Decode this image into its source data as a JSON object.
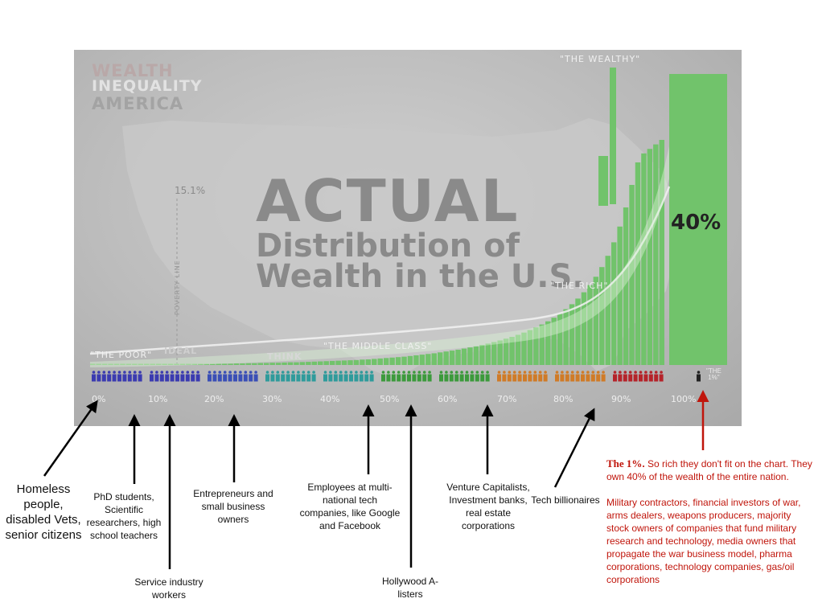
{
  "header": {
    "line1": "WEALTH",
    "line2": "INEQUALITY",
    "line3": "AMERICA"
  },
  "chart": {
    "title_line1": "ACTUAL",
    "title_line2": "Distribution of",
    "title_line3": "Wealth in the U.S.",
    "label_poor": "\"THE POOR\"",
    "label_middle": "\"THE MIDDLE CLASS\"",
    "label_rich": "\"THE RICH\"",
    "label_wealthy": "\"THE WEALTHY\"",
    "label_ideal": "IDEAL",
    "label_think": "THINK",
    "label_poverty_value": "15.1%",
    "label_poverty_line": "POVERTY LINE",
    "big_value": "40%",
    "onepct_label_top": "\"THE",
    "onepct_label_bottom": "1%\""
  },
  "chart_data": {
    "type": "bar",
    "title": "ACTUAL Distribution of Wealth in the U.S.",
    "xlabel": "",
    "ylabel": "",
    "x_ticks": [
      "0%",
      "10%",
      "20%",
      "30%",
      "40%",
      "50%",
      "60%",
      "70%",
      "80%",
      "90%",
      "100%"
    ],
    "top_one_percent_share": "40%",
    "poverty_line": "15.1%",
    "segments": [
      "\"THE POOR\"",
      "\"THE MIDDLE CLASS\"",
      "\"THE RICH\"",
      "\"THE WEALTHY\""
    ],
    "bar_heights_relative": [
      0.002,
      0.002,
      0.002,
      0.002,
      0.002,
      0.002,
      0.002,
      0.002,
      0.002,
      0.002,
      0.003,
      0.003,
      0.003,
      0.003,
      0.003,
      0.004,
      0.004,
      0.004,
      0.005,
      0.005,
      0.005,
      0.006,
      0.006,
      0.006,
      0.007,
      0.007,
      0.008,
      0.008,
      0.009,
      0.009,
      0.01,
      0.01,
      0.011,
      0.012,
      0.012,
      0.013,
      0.014,
      0.015,
      0.016,
      0.017,
      0.018,
      0.019,
      0.02,
      0.021,
      0.022,
      0.024,
      0.025,
      0.027,
      0.029,
      0.031,
      0.033,
      0.035,
      0.037,
      0.04,
      0.043,
      0.046,
      0.049,
      0.052,
      0.056,
      0.06,
      0.064,
      0.068,
      0.073,
      0.078,
      0.083,
      0.089,
      0.095,
      0.102,
      0.109,
      0.117,
      0.125,
      0.134,
      0.144,
      0.155,
      0.167,
      0.18,
      0.194,
      0.21,
      0.228,
      0.248,
      0.27,
      0.295,
      0.323,
      0.355,
      0.392,
      0.435,
      0.485,
      0.545,
      0.615,
      0.7,
      0.8,
      0.9,
      0.94,
      0.96,
      0.98,
      1.0
    ],
    "grid": false,
    "legend": "none"
  },
  "people_colors": [
    "#3b3bb0",
    "#3b3bb0",
    "#3a4fb6",
    "#2f9b9b",
    "#2f9b9b",
    "#3c9a3c",
    "#3c9a3c",
    "#d07b27",
    "#d07b27",
    "#b5232a",
    "#b5232a"
  ],
  "bar_color": "#71c36b",
  "annotations": {
    "homeless": "Homeless people, disabled Vets, senior citizens",
    "phd": "PhD students, Scientific researchers, high school teachers",
    "service": "Service industry workers",
    "entrepreneurs": "Entrepreneurs and small business owners",
    "employees": "Employees at multi-national tech companies, like Google and Facebook",
    "hollywood": "Hollywood A-listers",
    "venture": "Venture Capitalists, Investment banks, real estate corporations",
    "tech": "Tech billionaires"
  },
  "red_note": {
    "title": "The 1%.",
    "line1": "So rich they don't fit on the chart. They own 40% of the wealth of the entire nation.",
    "line2": "Military contractors, financial investors of war, arms dealers, weapons producers, majority stock owners of companies that fund military research and technology, media owners that propagate the war business model, pharma corporations, technology companies, gas/oil corporations"
  },
  "colors": {
    "red_text": "#c0150b",
    "arrow_black": "#000000",
    "arrow_red": "#c0150b"
  }
}
